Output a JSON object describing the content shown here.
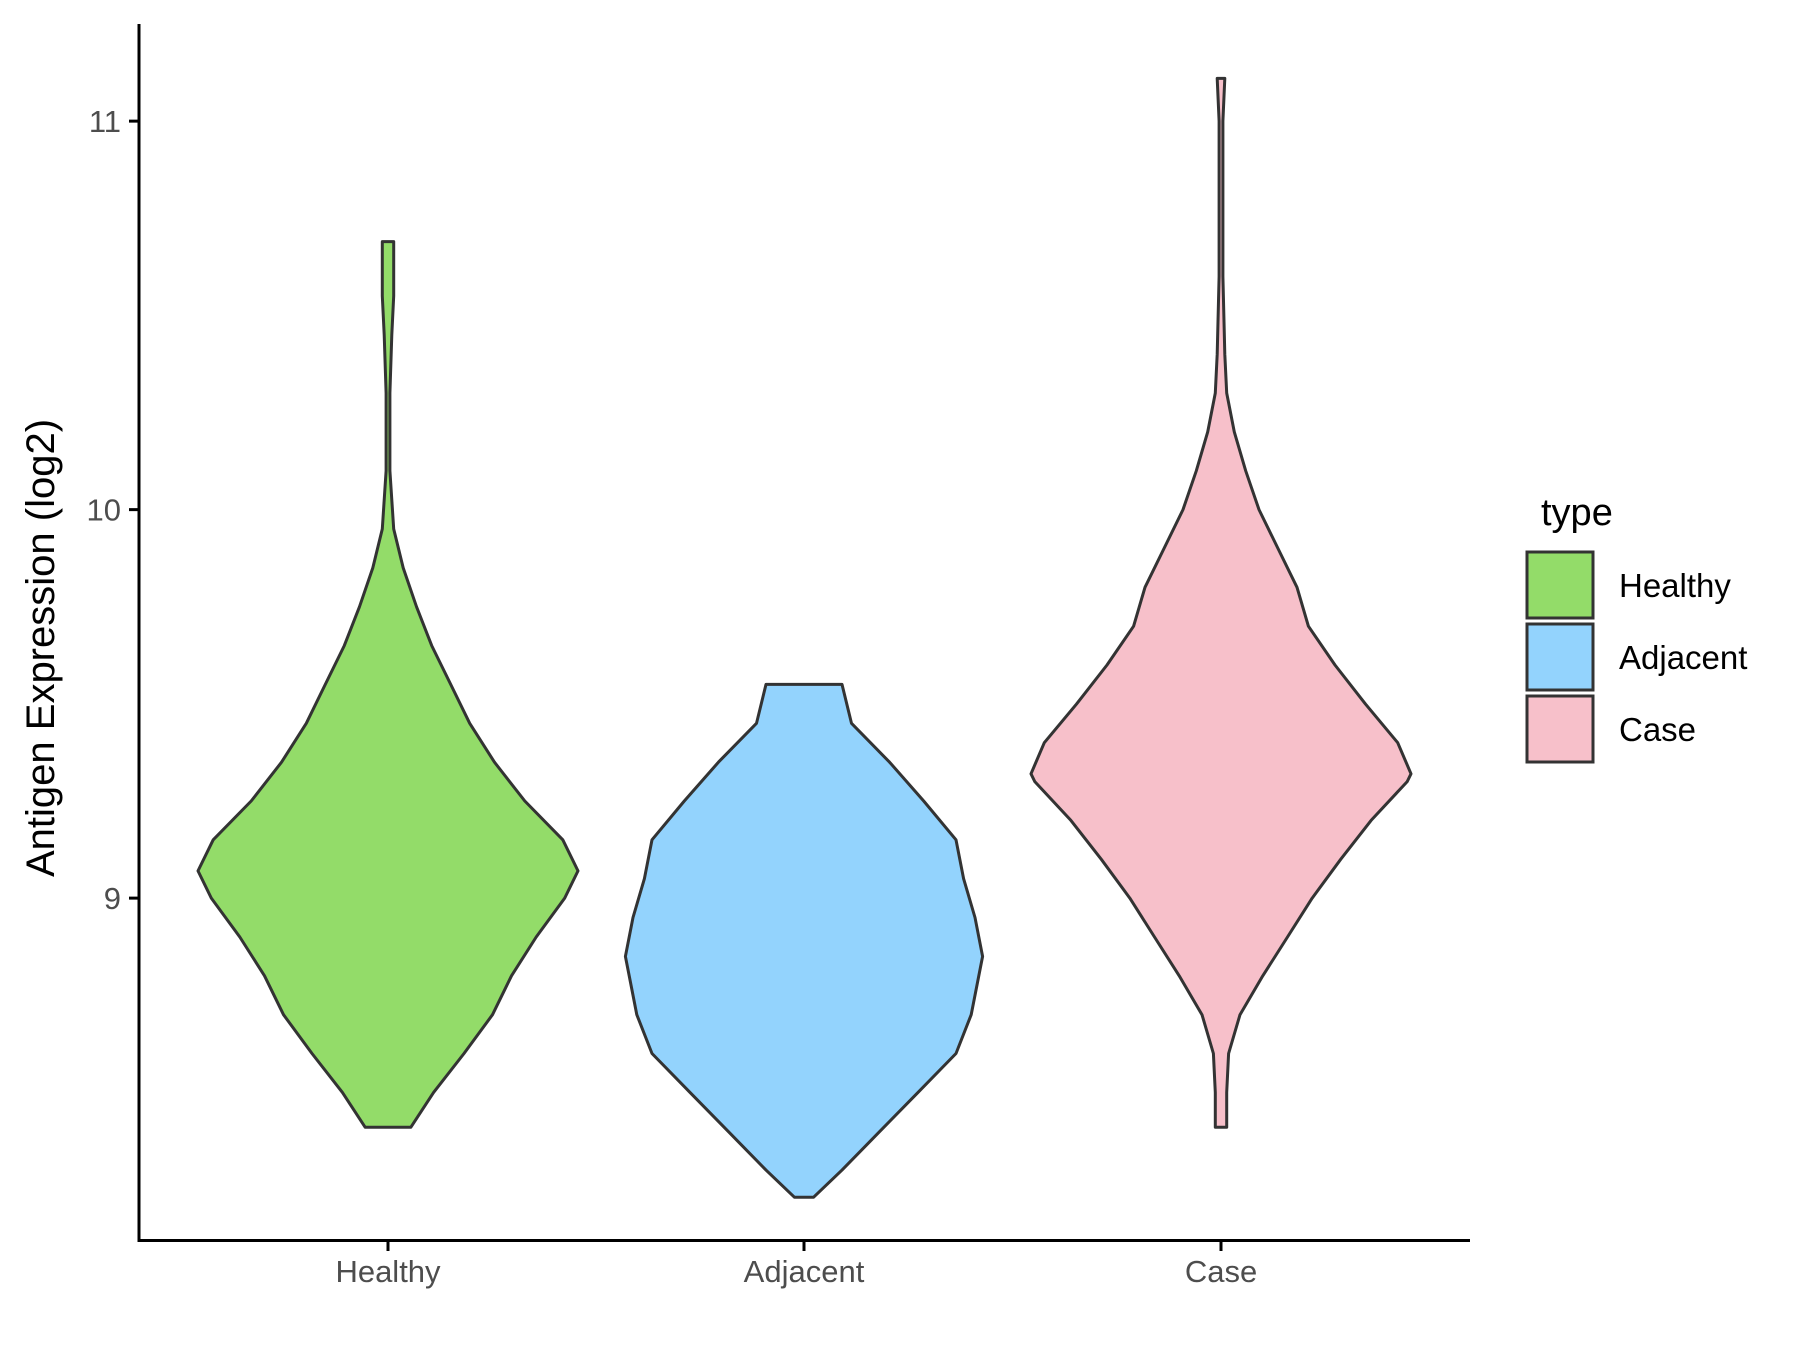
{
  "chart_data": {
    "type": "violin",
    "xlabel": "",
    "ylabel": "Antigen Expression (log2)",
    "ylim": [
      8.12,
      11.25
    ],
    "yticks": [
      9,
      10,
      11
    ],
    "categories": [
      "Healthy",
      "Adjacent",
      "Case"
    ],
    "legend": {
      "title": "type",
      "placement": "right",
      "entries": [
        {
          "label": "Healthy",
          "color": "#93dc69"
        },
        {
          "label": "Adjacent",
          "color": "#93d3fd"
        },
        {
          "label": "Case",
          "color": "#f7c0ca"
        }
      ]
    },
    "outline_color": "#333333",
    "grid": false,
    "series": [
      {
        "name": "Healthy",
        "color": "#93dc69",
        "min": 8.41,
        "max": 10.69,
        "density": [
          [
            8.41,
            0.12
          ],
          [
            8.5,
            0.24
          ],
          [
            8.6,
            0.4
          ],
          [
            8.7,
            0.55
          ],
          [
            8.8,
            0.65
          ],
          [
            8.9,
            0.78
          ],
          [
            9.0,
            0.93
          ],
          [
            9.07,
            1.0
          ],
          [
            9.15,
            0.92
          ],
          [
            9.25,
            0.72
          ],
          [
            9.35,
            0.56
          ],
          [
            9.45,
            0.43
          ],
          [
            9.55,
            0.33
          ],
          [
            9.65,
            0.23
          ],
          [
            9.75,
            0.15
          ],
          [
            9.85,
            0.08
          ],
          [
            9.95,
            0.03
          ],
          [
            10.1,
            0.01
          ],
          [
            10.3,
            0.01
          ],
          [
            10.45,
            0.02
          ],
          [
            10.55,
            0.03
          ],
          [
            10.69,
            0.03
          ]
        ]
      },
      {
        "name": "Adjacent",
        "color": "#93d3fd",
        "min": 8.23,
        "max": 9.55,
        "density": [
          [
            8.23,
            0.05
          ],
          [
            8.3,
            0.2
          ],
          [
            8.4,
            0.4
          ],
          [
            8.5,
            0.6
          ],
          [
            8.6,
            0.8
          ],
          [
            8.7,
            0.88
          ],
          [
            8.8,
            0.92
          ],
          [
            8.85,
            0.94
          ],
          [
            8.95,
            0.9
          ],
          [
            9.05,
            0.84
          ],
          [
            9.15,
            0.8
          ],
          [
            9.25,
            0.63
          ],
          [
            9.35,
            0.45
          ],
          [
            9.45,
            0.25
          ],
          [
            9.55,
            0.2
          ]
        ]
      },
      {
        "name": "Case",
        "color": "#f7c0ca",
        "min": 8.41,
        "max": 11.11,
        "density": [
          [
            8.41,
            0.03
          ],
          [
            8.5,
            0.03
          ],
          [
            8.6,
            0.04
          ],
          [
            8.7,
            0.1
          ],
          [
            8.8,
            0.22
          ],
          [
            8.9,
            0.35
          ],
          [
            9.0,
            0.48
          ],
          [
            9.1,
            0.63
          ],
          [
            9.2,
            0.79
          ],
          [
            9.3,
            0.98
          ],
          [
            9.32,
            1.0
          ],
          [
            9.4,
            0.93
          ],
          [
            9.5,
            0.76
          ],
          [
            9.6,
            0.6
          ],
          [
            9.7,
            0.46
          ],
          [
            9.8,
            0.4
          ],
          [
            9.9,
            0.3
          ],
          [
            10.0,
            0.2
          ],
          [
            10.1,
            0.13
          ],
          [
            10.2,
            0.07
          ],
          [
            10.3,
            0.03
          ],
          [
            10.4,
            0.02
          ],
          [
            10.6,
            0.01
          ],
          [
            10.8,
            0.01
          ],
          [
            11.0,
            0.01
          ],
          [
            11.11,
            0.02
          ]
        ]
      }
    ]
  }
}
